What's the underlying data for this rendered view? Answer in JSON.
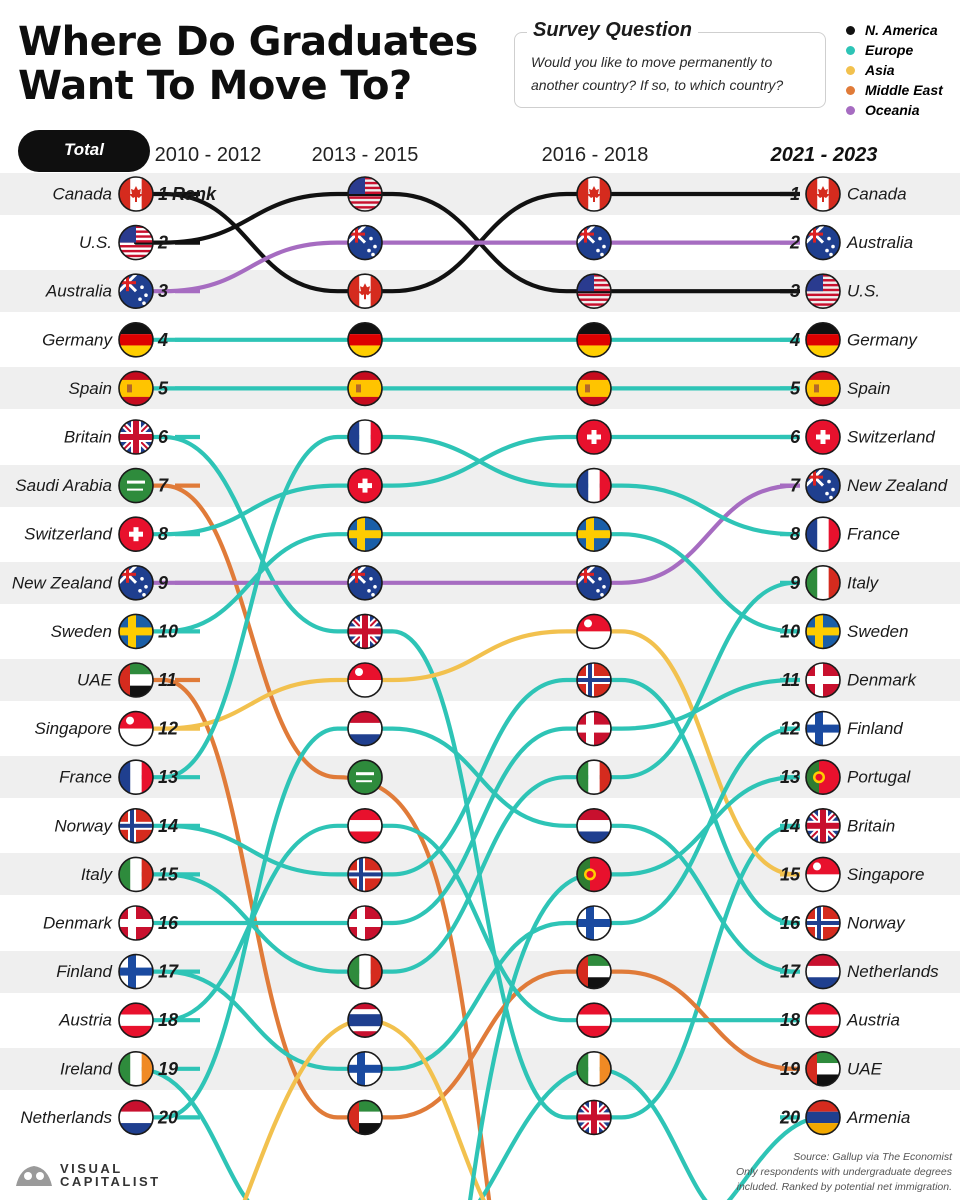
{
  "title": "Where Do Graduates Want To Move To?",
  "survey": {
    "title": "Survey Question",
    "text": "Would you like to move permanently to another country? If so, to which country?"
  },
  "legend": [
    {
      "label": "N. America",
      "color": "#111111"
    },
    {
      "label": "Europe",
      "color": "#2ec4b6"
    },
    {
      "label": "Asia",
      "color": "#f2c14e"
    },
    {
      "label": "Middle East",
      "color": "#e07b39"
    },
    {
      "label": "Oceania",
      "color": "#a66cc1"
    }
  ],
  "pill_label": "Total",
  "rank_label": "Rank",
  "periods": [
    "2010 - 2012",
    "2013 - 2015",
    "2016 - 2018",
    "2021 - 2023"
  ],
  "source": {
    "line1": "Source: Gallup via The Economist",
    "line2": "Only respondents with undergraduate degrees",
    "line3": "included. Ranked by potential net immigration."
  },
  "logo": {
    "line1": "VISUAL",
    "line2": "CAPITALIST"
  },
  "chart_data": {
    "type": "bump",
    "title": "Where Do Graduates Want To Move To?",
    "subtitle": "Total",
    "categories": [
      "2010 - 2012",
      "2013 - 2015",
      "2016 - 2018",
      "2021 - 2023"
    ],
    "y_axis": "Rank",
    "ylim": [
      1,
      20
    ],
    "series": [
      {
        "name": "Canada",
        "region": "N. America",
        "ranks": [
          1,
          3,
          1,
          1
        ]
      },
      {
        "name": "U.S.",
        "region": "N. America",
        "ranks": [
          2,
          1,
          3,
          3
        ]
      },
      {
        "name": "Australia",
        "region": "Oceania",
        "ranks": [
          3,
          2,
          2,
          2
        ]
      },
      {
        "name": "Germany",
        "region": "Europe",
        "ranks": [
          4,
          4,
          4,
          4
        ]
      },
      {
        "name": "Spain",
        "region": "Europe",
        "ranks": [
          5,
          5,
          5,
          5
        ]
      },
      {
        "name": "Britain",
        "region": "Europe",
        "ranks": [
          6,
          10,
          20,
          14
        ]
      },
      {
        "name": "Saudi Arabia",
        "region": "Middle East",
        "ranks": [
          7,
          13,
          null,
          null
        ]
      },
      {
        "name": "Switzerland",
        "region": "Europe",
        "ranks": [
          8,
          7,
          6,
          6
        ]
      },
      {
        "name": "New Zealand",
        "region": "Oceania",
        "ranks": [
          9,
          9,
          9,
          7
        ]
      },
      {
        "name": "Sweden",
        "region": "Europe",
        "ranks": [
          10,
          8,
          8,
          10
        ]
      },
      {
        "name": "UAE",
        "region": "Middle East",
        "ranks": [
          11,
          20,
          17,
          19
        ]
      },
      {
        "name": "Singapore",
        "region": "Asia",
        "ranks": [
          12,
          11,
          10,
          15
        ]
      },
      {
        "name": "France",
        "region": "Europe",
        "ranks": [
          13,
          6,
          7,
          8
        ]
      },
      {
        "name": "Norway",
        "region": "Europe",
        "ranks": [
          14,
          15,
          11,
          16
        ]
      },
      {
        "name": "Italy",
        "region": "Europe",
        "ranks": [
          15,
          17,
          13,
          9
        ]
      },
      {
        "name": "Denmark",
        "region": "Europe",
        "ranks": [
          16,
          16,
          12,
          11
        ]
      },
      {
        "name": "Finland",
        "region": "Europe",
        "ranks": [
          17,
          19,
          16,
          12
        ]
      },
      {
        "name": "Austria",
        "region": "Europe",
        "ranks": [
          18,
          14,
          18,
          18
        ]
      },
      {
        "name": "Ireland",
        "region": "Europe",
        "ranks": [
          19,
          null,
          19,
          null
        ]
      },
      {
        "name": "Netherlands",
        "region": "Europe",
        "ranks": [
          20,
          12,
          14,
          17
        ]
      },
      {
        "name": "Thailand",
        "region": "Asia",
        "ranks": [
          null,
          18,
          null,
          null
        ]
      },
      {
        "name": "Portugal",
        "region": "Europe",
        "ranks": [
          null,
          null,
          15,
          13
        ]
      },
      {
        "name": "Armenia",
        "region": "Europe",
        "ranks": [
          null,
          null,
          null,
          20
        ]
      }
    ]
  }
}
